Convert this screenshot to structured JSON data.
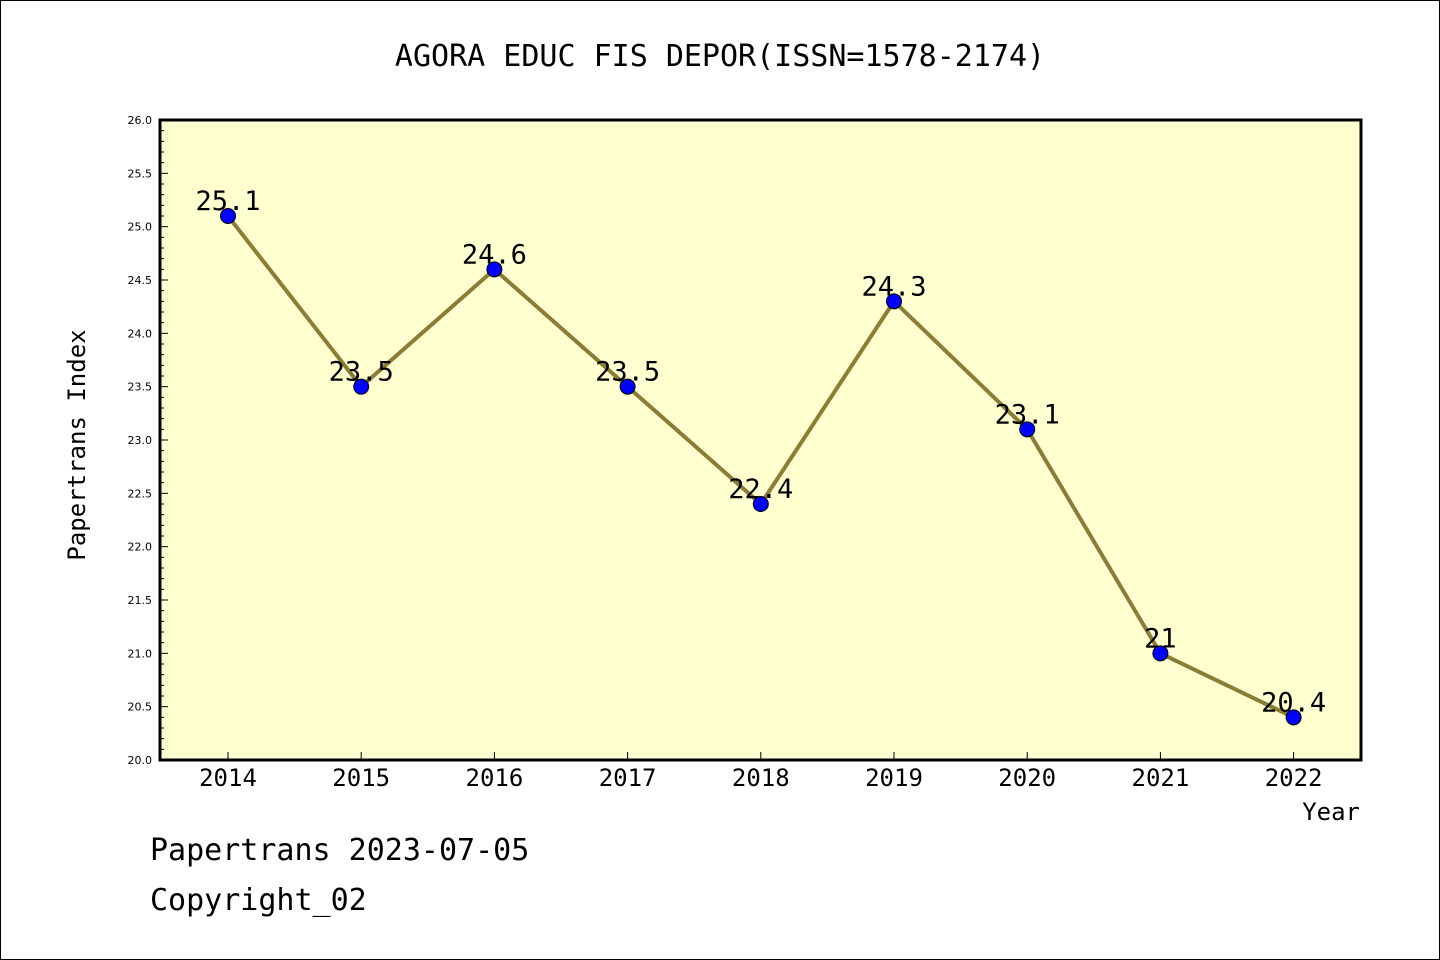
{
  "chart_data": {
    "type": "line",
    "title": "AGORA EDUC FIS DEPOR(ISSN=1578-2174)",
    "xlabel": "Year",
    "ylabel": "Papertrans Index",
    "categories": [
      "2014",
      "2015",
      "2016",
      "2017",
      "2018",
      "2019",
      "2020",
      "2021",
      "2022"
    ],
    "values": [
      25.1,
      23.5,
      24.6,
      23.5,
      22.4,
      24.3,
      23.1,
      21,
      20.4
    ],
    "data_labels": [
      "25.1",
      "23.5",
      "24.6",
      "23.5",
      "22.4",
      "24.3",
      "23.1",
      "21",
      "20.4"
    ],
    "ylim": [
      20.0,
      26.0
    ],
    "yticks": [
      "20.0",
      "20.5",
      "21.0",
      "21.5",
      "22.0",
      "22.5",
      "23.0",
      "23.5",
      "24.0",
      "24.5",
      "25.0",
      "25.5",
      "26.0"
    ],
    "grid": false,
    "colors": {
      "plot_background": "#ffffd0",
      "line": "#8b7d35",
      "marker": "#0000ff"
    }
  },
  "footer": {
    "line1": "Papertrans 2023-07-05",
    "line2": "Copyright_02"
  }
}
